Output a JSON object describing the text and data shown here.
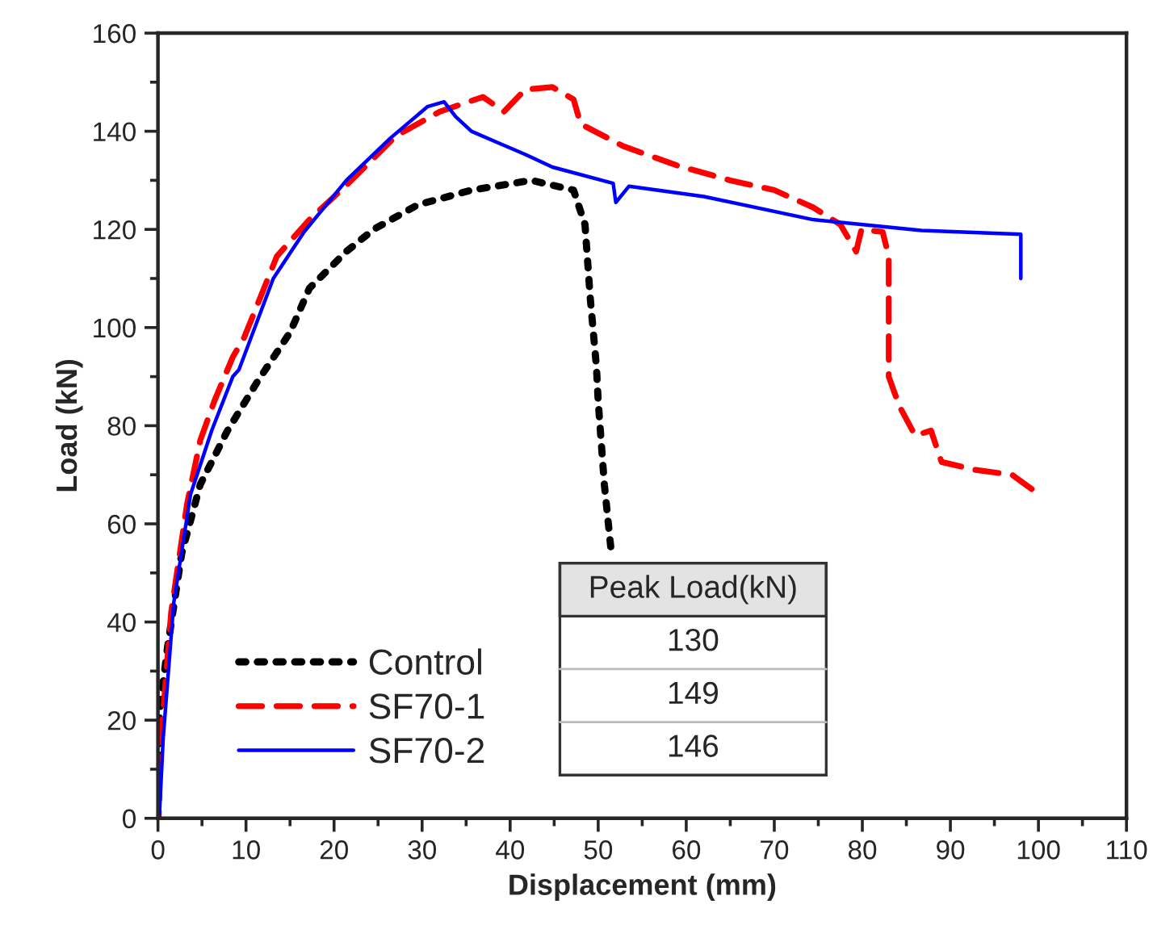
{
  "chart_data": {
    "type": "line",
    "xlabel": "Displacement (mm)",
    "ylabel": "Load (kN)",
    "xlim": [
      0,
      110
    ],
    "xticks": [
      0,
      10,
      20,
      30,
      40,
      50,
      60,
      70,
      80,
      90,
      100,
      110
    ],
    "ylim": [
      0,
      160
    ],
    "yticks": [
      0,
      20,
      40,
      60,
      80,
      100,
      120,
      140,
      160
    ],
    "grid": false,
    "legend": "bottom left",
    "marker": "none",
    "series": [
      {
        "name": "Control",
        "color": "#000000",
        "line_style": "dotted",
        "x": [
          0,
          0.2,
          1.1,
          2.7,
          4.8,
          7.9,
          11.3,
          15,
          17.2,
          21.4,
          24.5,
          29.5,
          35.6,
          42.4,
          47.2,
          48.5,
          49.1,
          49.8,
          50,
          50.7,
          51.5
        ],
        "values": [
          0,
          22,
          35,
          54,
          68,
          79,
          89,
          99,
          108,
          115.5,
          120,
          125,
          128,
          130,
          128,
          121,
          106,
          92,
          85,
          68,
          54
        ]
      },
      {
        "name": "SF70-1",
        "color": "#ff0000",
        "line_style": "dashed",
        "x": [
          0,
          0.3,
          1.5,
          3.3,
          4.8,
          6.4,
          8.5,
          9.8,
          13.5,
          17.2,
          21.4,
          27,
          32,
          36.9,
          39.3,
          41.7,
          44.8,
          47.2,
          48,
          52.8,
          59,
          65,
          70,
          74.4,
          77.5,
          79.3,
          79.9,
          82.3,
          83,
          83,
          84.2,
          86,
          87.8,
          89,
          92.8,
          97,
          99.3
        ],
        "values": [
          0,
          15,
          42,
          64,
          77,
          85,
          94,
          98,
          114.5,
          122,
          129,
          139,
          144,
          147,
          144,
          148.5,
          149,
          146.5,
          141.5,
          137,
          133,
          130,
          128,
          124.5,
          121,
          115.5,
          120,
          119.5,
          114.5,
          90,
          84,
          78,
          79,
          72.6,
          71,
          70,
          67
        ]
      },
      {
        "name": "SF70-2",
        "color": "#0000ff",
        "line_style": "solid",
        "x": [
          0,
          0.2,
          0.6,
          1.8,
          3.7,
          6.1,
          8.5,
          9.2,
          13.1,
          16.6,
          21.4,
          26.4,
          30.6,
          32.5,
          33.8,
          35.6,
          38.7,
          41.7,
          44.8,
          51.7,
          52,
          53.5,
          62,
          74.4,
          86.7,
          98,
          98
        ],
        "values": [
          0,
          2,
          16.5,
          44,
          66,
          79,
          90,
          91.4,
          110,
          119.5,
          130,
          138.6,
          145,
          146,
          143,
          140,
          137.6,
          135.3,
          132.7,
          129.4,
          125.5,
          128.8,
          126.7,
          122,
          119.8,
          119,
          110
        ]
      }
    ],
    "annotations": [
      "Peak Load(kN)",
      "130",
      "149",
      "146"
    ]
  }
}
